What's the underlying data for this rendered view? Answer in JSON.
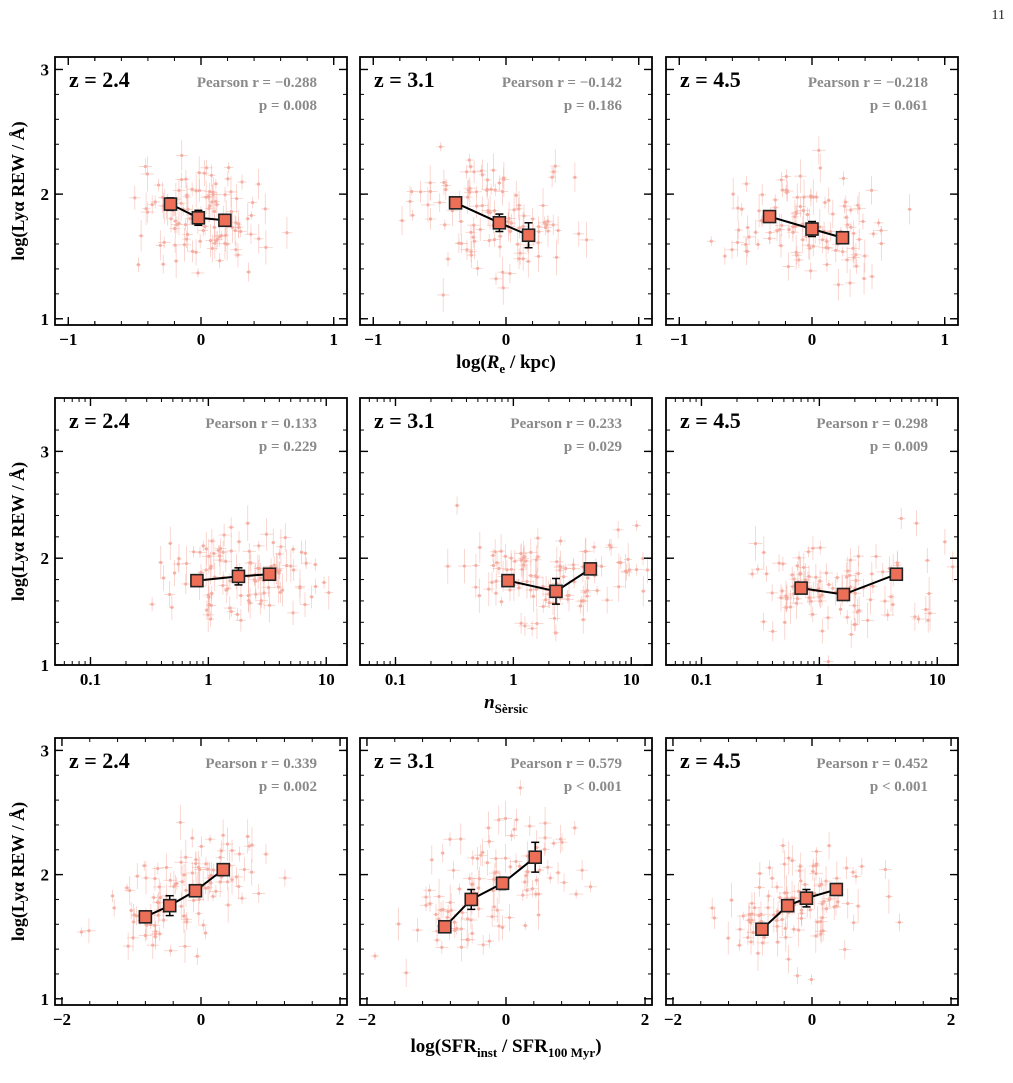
{
  "page_number": "11",
  "colors": {
    "scatter": "#f4a79a",
    "median_fill": "#ee6f58",
    "median_edge": "#222222",
    "stat_text": "#8a8a8a",
    "frame": "#000000"
  },
  "ylabel": "log(Lyα REW / Å)",
  "rows": [
    {
      "xlabel_main": "log(",
      "xlabel_var": "R",
      "xlabel_sub": "e",
      "xlabel_tail": " / kpc)"
    },
    {
      "xlabel_main": "",
      "xlabel_var": "n",
      "xlabel_sub": "Sèrsic",
      "xlabel_tail": ""
    },
    {
      "xlabel_main": "log(SFR",
      "xlabel_var": "",
      "xlabel_sub": "inst",
      "xlabel_tail": " / SFR",
      "xlabel_sub2": "100 Myr",
      "xlabel_end": ")"
    }
  ],
  "chart_data": [
    {
      "type": "scatter",
      "row": 0,
      "col": 0,
      "redshift_label": "z = 2.4",
      "pearson_label": "Pearson r = −0.288",
      "p_label": "p = 0.008",
      "xscale": "linear",
      "xlim": [
        -1.1,
        1.1
      ],
      "ylim": [
        0.95,
        3.1
      ],
      "xticks": [
        -1,
        0,
        1
      ],
      "xticklabels": [
        "−1",
        "0",
        "1"
      ],
      "yticks": [
        1,
        2,
        3
      ],
      "yticklabels": [
        "1",
        "2",
        "3"
      ],
      "medians": {
        "x": [
          -0.23,
          -0.02,
          0.18
        ],
        "y": [
          1.92,
          1.81,
          1.79
        ],
        "yerr": [
          0.05,
          0.06,
          0.03
        ]
      }
    },
    {
      "type": "scatter",
      "row": 0,
      "col": 1,
      "redshift_label": "z = 3.1",
      "pearson_label": "Pearson r = −0.142",
      "p_label": "p = 0.186",
      "xscale": "linear",
      "xlim": [
        -1.1,
        1.1
      ],
      "ylim": [
        0.95,
        3.1
      ],
      "xticks": [
        -1,
        0,
        1
      ],
      "xticklabels": [
        "−1",
        "0",
        "1"
      ],
      "yticks": [
        1,
        2,
        3
      ],
      "yticklabels": [
        "",
        "",
        ""
      ],
      "medians": {
        "x": [
          -0.38,
          -0.05,
          0.17
        ],
        "y": [
          1.93,
          1.77,
          1.67
        ],
        "yerr": [
          0.03,
          0.07,
          0.1
        ]
      }
    },
    {
      "type": "scatter",
      "row": 0,
      "col": 2,
      "redshift_label": "z = 4.5",
      "pearson_label": "Pearson r = −0.218",
      "p_label": "p = 0.061",
      "xscale": "linear",
      "xlim": [
        -1.1,
        1.1
      ],
      "ylim": [
        0.95,
        3.1
      ],
      "xticks": [
        -1,
        0,
        1
      ],
      "xticklabels": [
        "−1",
        "0",
        "1"
      ],
      "yticks": [
        1,
        2,
        3
      ],
      "yticklabels": [
        "",
        "",
        ""
      ],
      "medians": {
        "x": [
          -0.32,
          0.0,
          0.23
        ],
        "y": [
          1.82,
          1.72,
          1.65
        ],
        "yerr": [
          0.03,
          0.06,
          0.03
        ]
      }
    },
    {
      "type": "scatter",
      "row": 1,
      "col": 0,
      "redshift_label": "z = 2.4",
      "pearson_label": "Pearson r = 0.133",
      "p_label": "p = 0.229",
      "xscale": "log",
      "xlim": [
        0.05,
        15
      ],
      "ylim": [
        1.0,
        3.5
      ],
      "xticks": [
        0.1,
        1,
        10
      ],
      "xticklabels": [
        "0.1",
        "1",
        "10"
      ],
      "yticks": [
        1,
        2,
        3
      ],
      "yticklabels": [
        "1",
        "2",
        "3"
      ],
      "medians": {
        "x": [
          0.8,
          1.8,
          3.3
        ],
        "y": [
          1.79,
          1.83,
          1.85
        ],
        "yerr": [
          0.03,
          0.08,
          0.03
        ]
      }
    },
    {
      "type": "scatter",
      "row": 1,
      "col": 1,
      "redshift_label": "z = 3.1",
      "pearson_label": "Pearson r = 0.233",
      "p_label": "p = 0.029",
      "xscale": "log",
      "xlim": [
        0.05,
        15
      ],
      "ylim": [
        1.0,
        3.5
      ],
      "xticks": [
        0.1,
        1,
        10
      ],
      "xticklabels": [
        "0.1",
        "1",
        "10"
      ],
      "yticks": [
        1,
        2,
        3
      ],
      "yticklabels": [
        "",
        "",
        ""
      ],
      "medians": {
        "x": [
          0.9,
          2.3,
          4.5
        ],
        "y": [
          1.79,
          1.69,
          1.9
        ],
        "yerr": [
          0.03,
          0.12,
          0.04
        ]
      }
    },
    {
      "type": "scatter",
      "row": 1,
      "col": 2,
      "redshift_label": "z = 4.5",
      "pearson_label": "Pearson r = 0.298",
      "p_label": "p = 0.009",
      "xscale": "log",
      "xlim": [
        0.05,
        15
      ],
      "ylim": [
        1.0,
        3.5
      ],
      "xticks": [
        0.1,
        1,
        10
      ],
      "xticklabels": [
        "0.1",
        "1",
        "10"
      ],
      "yticks": [
        1,
        2,
        3
      ],
      "yticklabels": [
        "",
        "",
        ""
      ],
      "medians": {
        "x": [
          0.7,
          1.6,
          4.5
        ],
        "y": [
          1.72,
          1.66,
          1.85
        ],
        "yerr": [
          0.03,
          0.03,
          0.03
        ]
      }
    },
    {
      "type": "scatter",
      "row": 2,
      "col": 0,
      "redshift_label": "z = 2.4",
      "pearson_label": "Pearson r = 0.339",
      "p_label": "p = 0.002",
      "xscale": "linear",
      "xlim": [
        -2.1,
        2.1
      ],
      "ylim": [
        0.95,
        3.1
      ],
      "xticks": [
        -2,
        0,
        2
      ],
      "xticklabels": [
        "−2",
        "0",
        "2"
      ],
      "yticks": [
        1,
        2,
        3
      ],
      "yticklabels": [
        "1",
        "2",
        "3"
      ],
      "medians": {
        "x": [
          -0.8,
          -0.45,
          -0.08,
          0.32
        ],
        "y": [
          1.66,
          1.75,
          1.87,
          2.04
        ],
        "yerr": [
          0.03,
          0.08,
          0.04,
          0.04
        ]
      }
    },
    {
      "type": "scatter",
      "row": 2,
      "col": 1,
      "redshift_label": "z = 3.1",
      "pearson_label": "Pearson r = 0.579",
      "p_label": "p < 0.001",
      "xscale": "linear",
      "xlim": [
        -2.1,
        2.1
      ],
      "ylim": [
        0.95,
        3.1
      ],
      "xticks": [
        -2,
        0,
        2
      ],
      "xticklabels": [
        "−2",
        "0",
        "2"
      ],
      "yticks": [
        1,
        2,
        3
      ],
      "yticklabels": [
        "",
        "",
        ""
      ],
      "medians": {
        "x": [
          -0.88,
          -0.5,
          -0.05,
          0.42
        ],
        "y": [
          1.58,
          1.8,
          1.93,
          2.14
        ],
        "yerr": [
          0.04,
          0.08,
          0.05,
          0.12
        ]
      }
    },
    {
      "type": "scatter",
      "row": 2,
      "col": 2,
      "redshift_label": "z = 4.5",
      "pearson_label": "Pearson r = 0.452",
      "p_label": "p < 0.001",
      "xscale": "linear",
      "xlim": [
        -2.1,
        2.1
      ],
      "ylim": [
        0.95,
        3.1
      ],
      "xticks": [
        -2,
        0,
        2
      ],
      "xticklabels": [
        "−2",
        "0",
        "2"
      ],
      "yticks": [
        1,
        2,
        3
      ],
      "yticklabels": [
        "",
        "",
        ""
      ],
      "medians": {
        "x": [
          -0.72,
          -0.35,
          -0.08,
          0.35
        ],
        "y": [
          1.56,
          1.75,
          1.81,
          1.88
        ],
        "yerr": [
          0.03,
          0.04,
          0.07,
          0.04
        ]
      }
    }
  ]
}
